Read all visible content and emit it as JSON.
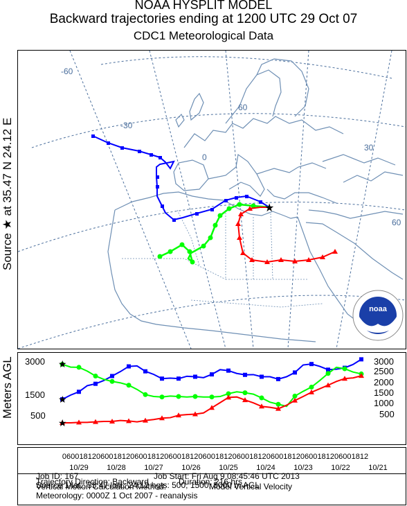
{
  "header": {
    "line1": "NOAA HYSPLIT MODEL",
    "line2": "Backward trajectories ending at 1200 UTC 29 Oct 07",
    "line3": "CDC1 Meteorological Data"
  },
  "source_label": "Source ★ at   35.47 N   24.12 E",
  "agl_label": "Meters AGL",
  "map": {
    "graticule_labels": [
      "-60",
      "-30",
      "0",
      "60",
      "30",
      "60"
    ],
    "logo_text": "noaa",
    "colors": {
      "coast": "#6e8fb4",
      "graticule": "#4a6e9c",
      "red": "#ff0000",
      "blue": "#0000ff",
      "green": "#00ff00"
    }
  },
  "chart_data": [
    {
      "type": "line",
      "title": "Meters AGL",
      "ylim": [
        0,
        3300
      ],
      "left_ticks": [
        "3000",
        "1500",
        "500"
      ],
      "right_ticks": [
        "3000",
        "2500",
        "2000",
        "1500",
        "1000",
        "500"
      ],
      "x_hours_back": [
        0,
        6,
        12,
        18,
        24,
        30,
        36,
        42,
        48,
        54,
        60,
        66,
        72,
        78,
        84,
        90,
        96,
        102,
        108,
        114,
        120,
        126,
        132,
        138,
        144,
        150,
        156,
        162,
        168,
        174,
        180,
        186,
        192,
        198,
        204,
        210,
        216
      ],
      "series": [
        {
          "color": "#0000ff",
          "values": [
            3200,
            2980,
            2840,
            2780,
            2760,
            2900,
            3000,
            2960,
            2640,
            2460,
            2360,
            2460,
            2460,
            2550,
            2540,
            2600,
            2720,
            2760,
            2560,
            2420,
            2460,
            2480,
            2380,
            2400,
            2380,
            2560,
            2690,
            2920,
            2900,
            2680,
            2490,
            2300,
            2160,
            2080,
            1820,
            1680,
            1500
          ]
        },
        {
          "color": "#00ff00",
          "values": [
            2580,
            2660,
            2800,
            2860,
            2600,
            2300,
            2020,
            1840,
            1640,
            1200,
            1290,
            1380,
            1560,
            1720,
            1780,
            1820,
            1740,
            1620,
            1600,
            1600,
            1620,
            1600,
            1620,
            1640,
            1600,
            1620,
            1700,
            1920,
            2100,
            2200,
            2260,
            2350,
            2490,
            2700,
            2860,
            2870,
            2990
          ]
        },
        {
          "color": "#ff0000",
          "values": [
            2500,
            2410,
            2380,
            2260,
            2100,
            1950,
            1800,
            1620,
            1450,
            1250,
            1100,
            1160,
            1200,
            1350,
            1470,
            1600,
            1580,
            1360,
            1140,
            920,
            870,
            850,
            820,
            720,
            700,
            640,
            600,
            540,
            580,
            600,
            560,
            560,
            540,
            520,
            520,
            500,
            500
          ]
        }
      ],
      "time_axis": {
        "hour_labels": [
          "06",
          "00",
          "18",
          "12",
          "06",
          "00",
          "18",
          "12",
          "06",
          "00",
          "18",
          "12",
          "06",
          "00",
          "18",
          "12",
          "06",
          "00",
          "18",
          "12",
          "06",
          "00",
          "18",
          "12",
          "06",
          "00",
          "18",
          "12",
          "06",
          "00",
          "18",
          "12",
          "06",
          "00",
          "18",
          "12"
        ],
        "date_labels": [
          "10/29",
          "10/28",
          "10/27",
          "10/26",
          "10/25",
          "10/24",
          "10/23",
          "10/22",
          "10/21"
        ]
      }
    }
  ],
  "info": {
    "job_id": "Job ID: 167",
    "job_start": "Job Start: Fri Aug  9 08:45:46 UTC 2013",
    "source_line": "Source 1 lat.: 35.47  lon.: 24.12  hgts: 500, 1500, 3000 m AGL",
    "direction": "Trajectory Direction: Backward",
    "duration": "Duration: 216 hrs",
    "vertical_method": "Vertical Motion Calculation Method:",
    "vertical_model": "Model Vertical Velocity",
    "meteorology": "Meteorology: 0000Z  1 Oct 2007 - reanalysis"
  }
}
